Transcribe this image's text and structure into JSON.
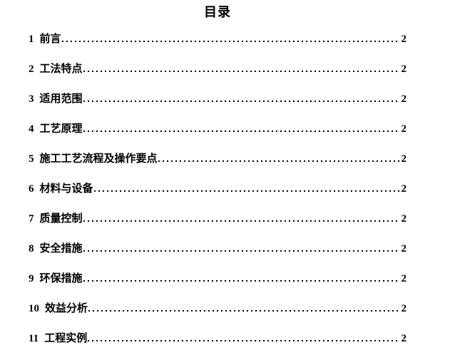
{
  "page": {
    "title": "目录",
    "colors": {
      "text": "#000000",
      "background": "#ffffff"
    },
    "toc": [
      {
        "num": "1",
        "label": "前言",
        "page": "2"
      },
      {
        "num": "2",
        "label": "工法特点",
        "page": "2"
      },
      {
        "num": "3",
        "label": "适用范围",
        "page": "2"
      },
      {
        "num": "4",
        "label": "工艺原理",
        "page": "2"
      },
      {
        "num": "5",
        "label": "施工工艺流程及操作要点",
        "page": "2"
      },
      {
        "num": "6",
        "label": "材料与设备",
        "page": "2"
      },
      {
        "num": "7",
        "label": "质量控制",
        "page": "2"
      },
      {
        "num": "8",
        "label": "安全措施",
        "page": "2"
      },
      {
        "num": "9",
        "label": "环保措施",
        "page": "2"
      },
      {
        "num": "10",
        "label": "效益分析",
        "page": "2"
      },
      {
        "num": "11",
        "label": "工程实例",
        "page": "2"
      }
    ]
  }
}
